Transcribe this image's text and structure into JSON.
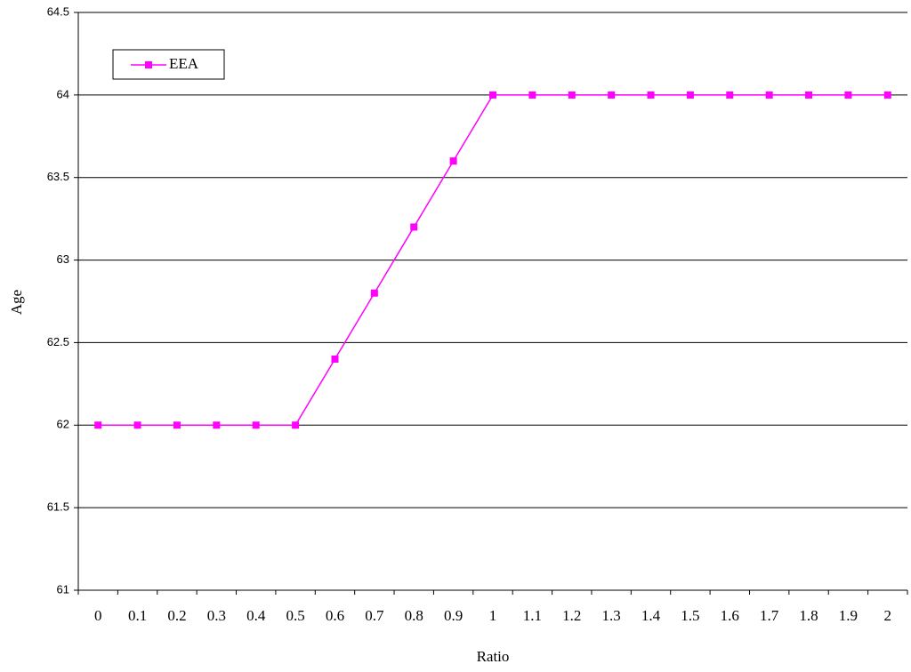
{
  "chart_data": {
    "type": "line",
    "x_label": "Ratio",
    "y_label": "Age",
    "categories": [
      "0",
      "0.1",
      "0.2",
      "0.3",
      "0.4",
      "0.5",
      "0.6",
      "0.7",
      "0.8",
      "0.9",
      "1",
      "1.1",
      "1.2",
      "1.3",
      "1.4",
      "1.5",
      "1.6",
      "1.7",
      "1.8",
      "1.9",
      "2"
    ],
    "series": [
      {
        "name": "EEA",
        "color": "#ff00ff",
        "values": [
          62,
          62,
          62,
          62,
          62,
          62,
          62.4,
          62.8,
          63.2,
          63.6,
          64,
          64,
          64,
          64,
          64,
          64,
          64,
          64,
          64,
          64,
          64
        ]
      }
    ],
    "ylim": [
      61,
      64.5
    ],
    "yticks": [
      61,
      61.5,
      62,
      62.5,
      63,
      63.5,
      64,
      64.5
    ],
    "grid": true
  }
}
